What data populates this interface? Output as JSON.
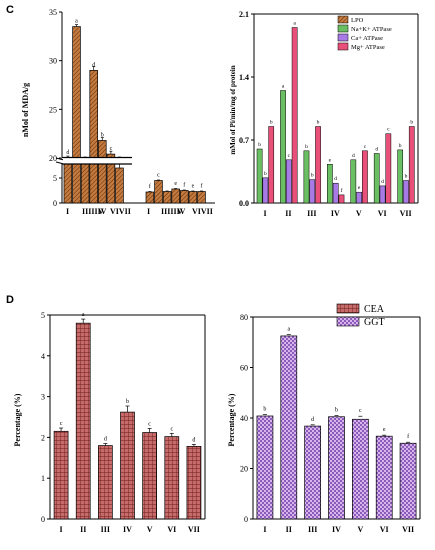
{
  "panel_labels": {
    "top": "C",
    "bottom": "D"
  },
  "colors": {
    "lpo": "#c57a3e",
    "na_k": "#6bbf63",
    "ca": "#a77ae6",
    "mg": "#e8507a",
    "cea": "#c76a6a",
    "ggt": "#b487d6",
    "axis": "#000000"
  },
  "chart_data": [
    {
      "id": "c-left",
      "type": "bar",
      "pattern": "hatch",
      "ylabel": "nMol of MDA/g",
      "categories": [
        "I",
        "II",
        "III",
        "IV",
        "V",
        "VI",
        "VII"
      ],
      "category_label_text": [
        "I",
        "IIIIIIV",
        "V",
        "VIVII",
        "",
        "",
        ""
      ],
      "axis_break": true,
      "ylim_lower": [
        0,
        5
      ],
      "ylim_upper": [
        20,
        35
      ],
      "yticks_lower": [
        0,
        5
      ],
      "yticks_upper": [
        20,
        25,
        30,
        35
      ],
      "series": [
        {
          "values": [
            20.0,
            33.5,
            20.0,
            29.0,
            21.8,
            20.4,
            19.9
          ],
          "errors": [
            0.2,
            0.2,
            0.1,
            0.4,
            0.3,
            0.3,
            0.2
          ],
          "letters": [
            "d",
            "a",
            "",
            "d",
            "b",
            "c",
            "d"
          ]
        },
        {
          "values": [
            2.2,
            4.5,
            2.3,
            2.8,
            2.5,
            2.3,
            2.3
          ],
          "errors": [
            0.1,
            0.1,
            0.1,
            0.1,
            0.1,
            0.1,
            0.1
          ],
          "letters": [
            "f",
            "c",
            "",
            "e",
            "f",
            "e",
            "f"
          ]
        }
      ]
    },
    {
      "id": "c-right",
      "type": "bar",
      "ylabel": "mMol of Pi/min/mg of protein",
      "categories": [
        "I",
        "II",
        "III",
        "IV",
        "V",
        "VI",
        "VII"
      ],
      "ylim": [
        0,
        2.1
      ],
      "yticks": [
        0.0,
        0.7,
        1.4,
        2.1
      ],
      "legend_position": "top-right",
      "series": [
        {
          "name": "LPO",
          "values": [
            0,
            0,
            0,
            0,
            0,
            0,
            0
          ],
          "letters": [
            "",
            "",
            "",
            "",
            "",
            "",
            ""
          ]
        },
        {
          "name": "Na+K+ ATPase",
          "values": [
            0.6,
            1.25,
            0.58,
            0.43,
            0.48,
            0.55,
            0.59
          ],
          "letters": [
            "b",
            "a",
            "b",
            "e",
            "d",
            "d",
            "b"
          ]
        },
        {
          "name": "Ca+ ATPase",
          "values": [
            0.28,
            0.48,
            0.26,
            0.22,
            0.12,
            0.19,
            0.25
          ],
          "letters": [
            "b",
            "c",
            "b",
            "d",
            "e",
            "d",
            "b"
          ]
        },
        {
          "name": "Mg+ ATPase",
          "values": [
            0.85,
            1.95,
            0.85,
            0.09,
            0.58,
            0.77,
            0.85
          ],
          "letters": [
            "b",
            "a",
            "b",
            "f",
            "c",
            "c",
            "b"
          ]
        }
      ]
    },
    {
      "id": "d-left",
      "type": "bar",
      "ylabel": "Percentage (%)",
      "categories": [
        "I",
        "II",
        "III",
        "IV",
        "V",
        "VI",
        "VII"
      ],
      "ylim": [
        0,
        5
      ],
      "yticks": [
        0,
        1,
        2,
        3,
        4,
        5
      ],
      "series": [
        {
          "name": "CEA",
          "values": [
            2.15,
            4.8,
            1.8,
            2.62,
            2.12,
            2.02,
            1.78
          ],
          "errors": [
            0.08,
            0.1,
            0.05,
            0.15,
            0.1,
            0.08,
            0.05
          ],
          "letters": [
            "c",
            "a",
            "d",
            "b",
            "c",
            "c",
            "d"
          ]
        }
      ]
    },
    {
      "id": "d-right",
      "type": "bar",
      "ylabel": "Percentage (%)",
      "categories": [
        "I",
        "II",
        "III",
        "IV",
        "V",
        "VI",
        "VII"
      ],
      "ylim": [
        0,
        80
      ],
      "yticks": [
        0,
        20,
        40,
        60,
        80
      ],
      "legend_position": "top-right",
      "series": [
        {
          "name": "GGT",
          "values": [
            40.8,
            72.5,
            36.8,
            40.5,
            39.5,
            32.8,
            30.0
          ],
          "errors": [
            0.6,
            0.6,
            0.5,
            0.5,
            1.2,
            0.4,
            0.4
          ],
          "letters": [
            "b",
            "a",
            "d",
            "b",
            "c",
            "e",
            "f"
          ]
        }
      ],
      "legend_entries": [
        "CEA",
        "GGT"
      ]
    }
  ]
}
